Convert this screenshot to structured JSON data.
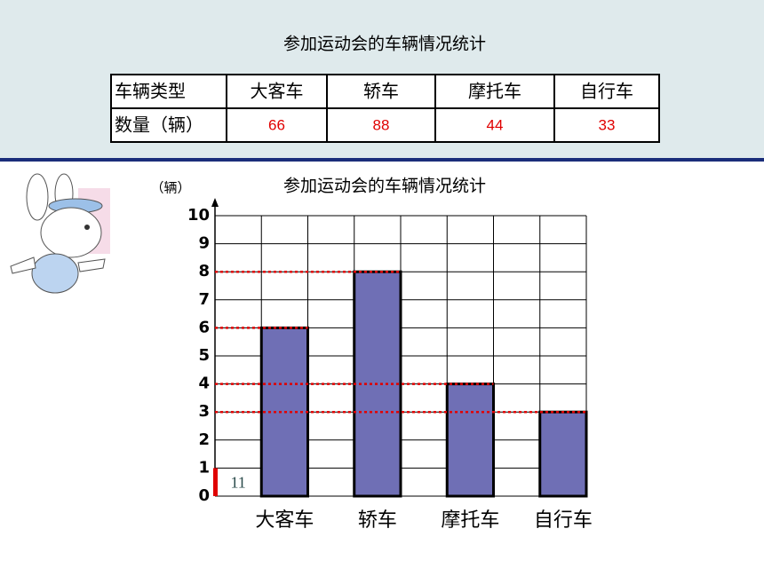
{
  "table": {
    "title": "参加运动会的车辆情况统计",
    "rows": [
      [
        "车辆类型",
        "大客车",
        "轿车",
        "摩托车",
        "自行车"
      ],
      [
        "数量（辆）",
        66,
        88,
        44,
        33
      ]
    ]
  },
  "chart_data": {
    "type": "bar",
    "title": "参加运动会的车辆情况统计",
    "y_label": "（辆）",
    "categories": [
      "大客车",
      "轿车",
      "摩托车",
      "自行车"
    ],
    "values": [
      6,
      8,
      4,
      3
    ],
    "color": "#6f6fb5",
    "ylim": [
      0,
      10
    ],
    "yticks": [
      0,
      1,
      2,
      3,
      4,
      5,
      6,
      7,
      8,
      9,
      10
    ],
    "grid": true,
    "unit_label": "11"
  }
}
